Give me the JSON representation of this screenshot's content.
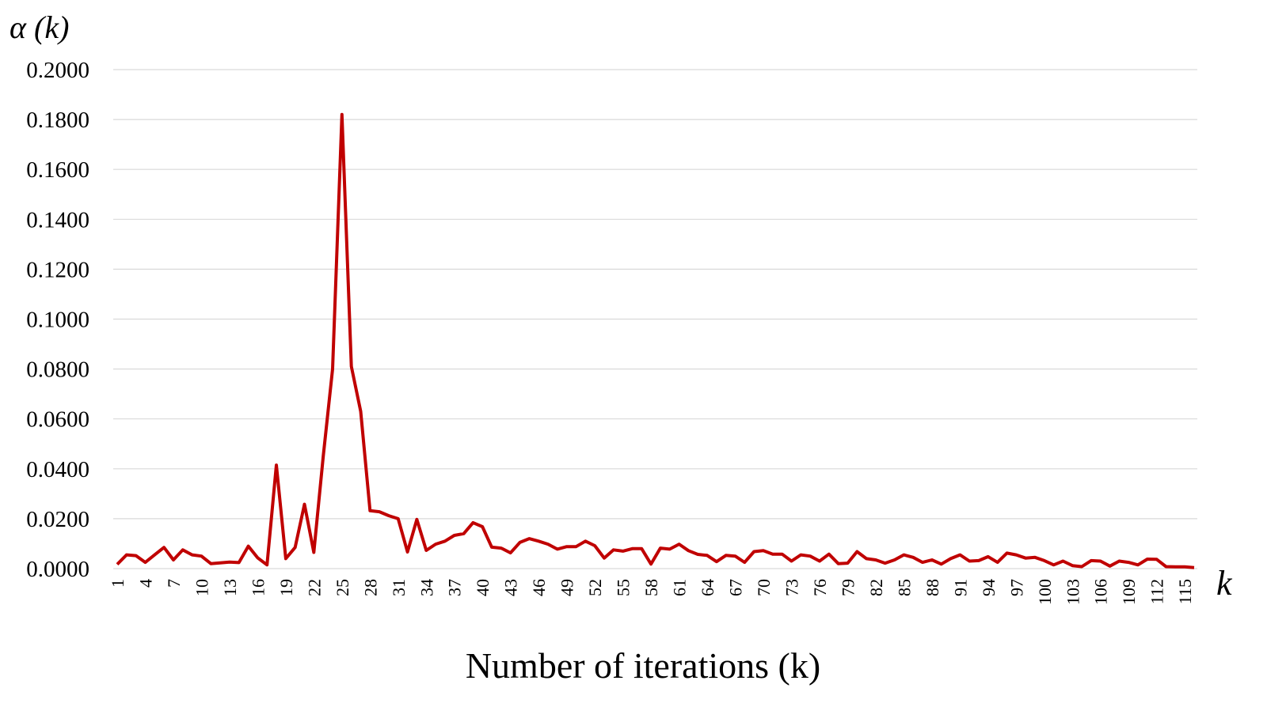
{
  "chart_data": {
    "type": "line",
    "title": "",
    "ylabel": "α (k)",
    "xlabel": "Number of iterations (k)",
    "x_axis_end_label": "k",
    "ylim": [
      0,
      0.2
    ],
    "yticks": [
      "0.0000",
      "0.0200",
      "0.0400",
      "0.0600",
      "0.0800",
      "0.1000",
      "0.1200",
      "0.1400",
      "0.1600",
      "0.1800",
      "0.2000"
    ],
    "xtick_step": 3,
    "grid": "horizontal",
    "line_color": "#C00000",
    "x": [
      1,
      2,
      3,
      4,
      5,
      6,
      7,
      8,
      9,
      10,
      11,
      12,
      13,
      14,
      15,
      16,
      17,
      18,
      19,
      20,
      21,
      22,
      23,
      24,
      25,
      26,
      27,
      28,
      29,
      30,
      31,
      32,
      33,
      34,
      35,
      36,
      37,
      38,
      39,
      40,
      41,
      42,
      43,
      44,
      45,
      46,
      47,
      48,
      49,
      50,
      51,
      52,
      53,
      54,
      55,
      56,
      57,
      58,
      59,
      60,
      61,
      62,
      63,
      64,
      65,
      66,
      67,
      68,
      69,
      70,
      71,
      72,
      73,
      74,
      75,
      76,
      77,
      78,
      79,
      80,
      81,
      82,
      83,
      84,
      85,
      86,
      87,
      88,
      89,
      90,
      91,
      92,
      93,
      94,
      95,
      96,
      97,
      98,
      99,
      100,
      101,
      102,
      103,
      104,
      105,
      106,
      107,
      108,
      109,
      110,
      111,
      112,
      113,
      114,
      115,
      116
    ],
    "values": [
      0.0017,
      0.0055,
      0.0052,
      0.0025,
      0.0055,
      0.0085,
      0.0035,
      0.0075,
      0.0055,
      0.005,
      0.002,
      0.0023,
      0.0026,
      0.0024,
      0.009,
      0.0043,
      0.0015,
      0.0415,
      0.004,
      0.0085,
      0.0258,
      0.0065,
      0.045,
      0.08,
      0.182,
      0.081,
      0.063,
      0.0232,
      0.0228,
      0.0212,
      0.02,
      0.0067,
      0.0197,
      0.0073,
      0.0098,
      0.011,
      0.0133,
      0.014,
      0.0184,
      0.0168,
      0.0086,
      0.0082,
      0.0063,
      0.0105,
      0.012,
      0.011,
      0.0098,
      0.0078,
      0.0088,
      0.0088,
      0.011,
      0.0092,
      0.0042,
      0.0075,
      0.007,
      0.008,
      0.008,
      0.0018,
      0.0082,
      0.0078,
      0.0098,
      0.0072,
      0.0057,
      0.0053,
      0.0028,
      0.0053,
      0.005,
      0.0025,
      0.0068,
      0.0072,
      0.0058,
      0.0058,
      0.003,
      0.0055,
      0.005,
      0.003,
      0.0058,
      0.002,
      0.0022,
      0.0068,
      0.004,
      0.0035,
      0.0022,
      0.0035,
      0.0055,
      0.0045,
      0.0025,
      0.0035,
      0.0018,
      0.004,
      0.0055,
      0.003,
      0.0032,
      0.0048,
      0.0025,
      0.0062,
      0.0055,
      0.0042,
      0.0045,
      0.0032,
      0.0015,
      0.003,
      0.0012,
      0.0008,
      0.0032,
      0.003,
      0.001,
      0.003,
      0.0025,
      0.0015,
      0.0038,
      0.0037,
      0.0008,
      0.0007,
      0.0007,
      0.0004
    ]
  }
}
